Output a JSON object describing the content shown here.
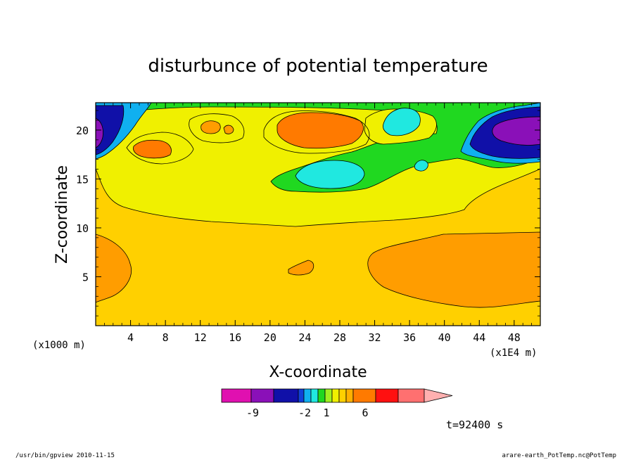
{
  "chart_data": {
    "type": "heatmap",
    "title": "disturbunce of potential temperature",
    "xlabel": "X-coordinate",
    "ylabel": "Z-coordinate",
    "x_unit_left": "(x1000 m)",
    "x_unit_right": "(x1E4 m)",
    "xlim": [
      0,
      51
    ],
    "ylim": [
      0,
      22.8
    ],
    "x_ticks": [
      4,
      8,
      12,
      16,
      20,
      24,
      28,
      32,
      36,
      40,
      44,
      48
    ],
    "x_tick_labels": [
      "4",
      "8",
      "12",
      "16",
      "20",
      "24",
      "28",
      "32",
      "36",
      "40",
      "44",
      "48"
    ],
    "y_ticks": [
      5,
      10,
      15,
      20
    ],
    "y_tick_labels": [
      "5",
      "10",
      "15",
      "20"
    ],
    "colorbar": {
      "colors": [
        "#e010b0",
        "#8a10b8",
        "#1010a8",
        "#1040d8",
        "#10b0f0",
        "#20e8e0",
        "#20d820",
        "#a0f020",
        "#f0f000",
        "#ffd000",
        "#ffb000",
        "#ff7a00",
        "#ff1010",
        "#ff7070",
        "#ffb0b0"
      ],
      "tick_labels": [
        "-9",
        "-2",
        "1",
        "6"
      ]
    },
    "field": [
      {
        "level": "base",
        "color": "#ffd000",
        "bbox_data": "full domain"
      },
      {
        "level": "warm",
        "color": "#ff9d00",
        "regions": [
          "left lower lobe x 0-5 z 2.5-9.5",
          "right lower lobe x 32-51 z 2.4-9.5",
          "small cell x 22.5-25 z 5-6.5"
        ]
      },
      {
        "level": "neutral",
        "color": "#f0f000",
        "regions": [
          "middle band z 10-17"
        ]
      },
      {
        "level": "cool",
        "color": "#20d820",
        "regions": [
          "upper layer z 13-22"
        ]
      },
      {
        "level": "cold",
        "color": "#1010a8",
        "regions": [
          "upper left corner",
          "upper right x 42-51 z 17.5-22"
        ]
      },
      {
        "level": "hot",
        "color": "#ff7a00",
        "regions": [
          "x 22-31 z 18-21.5",
          "x 4-9 z 17.5-19.5"
        ]
      }
    ]
  },
  "time_label": "t=92400 s",
  "footer_left": "/usr/bin/gpview   2010-11-15",
  "footer_right": "arare-earth_PotTemp.nc@PotTemp"
}
